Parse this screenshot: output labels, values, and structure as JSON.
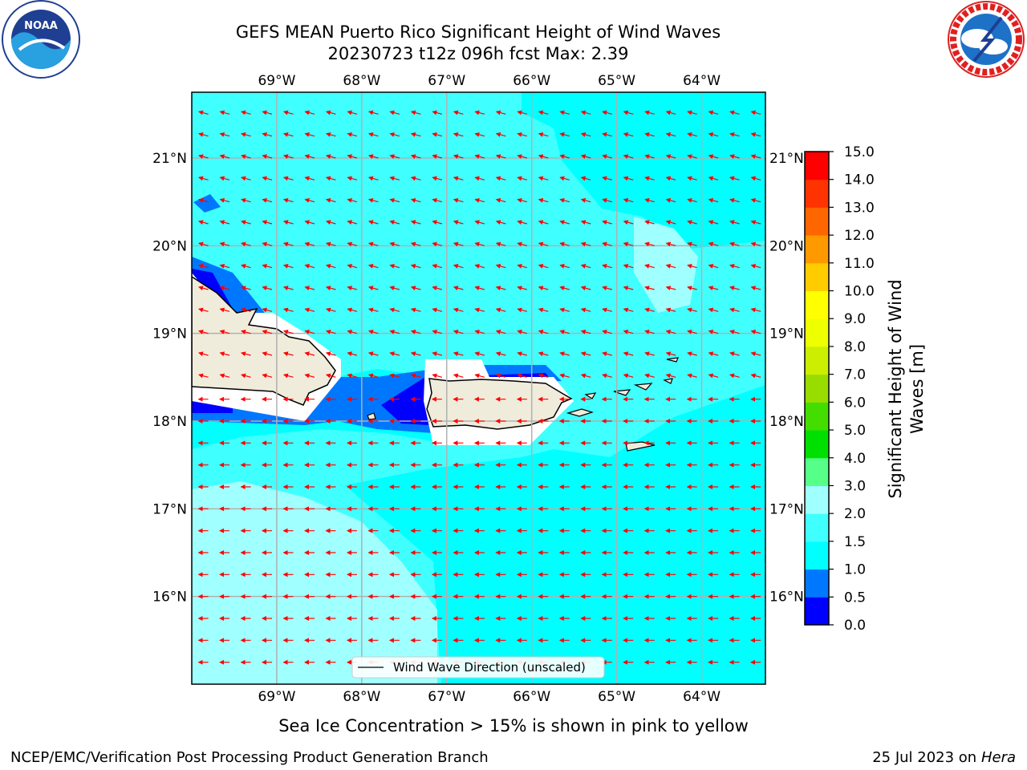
{
  "title": {
    "line1": "GEFS MEAN Puerto Rico Significant Height of Wind Waves",
    "line2": "20230723 t12z 096h fcst   Max: 2.39"
  },
  "map": {
    "lon_range": [
      -70.0,
      -63.25
    ],
    "lat_range": [
      15.0,
      21.75
    ],
    "lon_ticks": [
      {
        "value": -69,
        "label": "69°W"
      },
      {
        "value": -68,
        "label": "68°W"
      },
      {
        "value": -67,
        "label": "67°W"
      },
      {
        "value": -66,
        "label": "66°W"
      },
      {
        "value": -65,
        "label": "65°W"
      },
      {
        "value": -64,
        "label": "64°W"
      }
    ],
    "lat_ticks": [
      {
        "value": 21,
        "label": "21°N"
      },
      {
        "value": 20,
        "label": "20°N"
      },
      {
        "value": 19,
        "label": "19°N"
      },
      {
        "value": 18,
        "label": "18°N"
      },
      {
        "value": 17,
        "label": "17°N"
      },
      {
        "value": 16,
        "label": "16°N"
      }
    ],
    "grid": true,
    "arrow_color": "#ff0000",
    "land_color": "#efecdc",
    "legend_label": "Wind Wave Direction (unscaled)",
    "legend_placement": "bottom-center"
  },
  "colorbar": {
    "label": "Significant Height of Wind Waves [m]",
    "label_line1": "Significant Height of Wind",
    "label_line2": "Waves [m]",
    "levels": [
      0.0,
      0.5,
      1.0,
      1.5,
      2.0,
      3.0,
      4.0,
      5.0,
      6.0,
      7.0,
      8.0,
      9.0,
      10.0,
      11.0,
      12.0,
      13.0,
      14.0,
      15.0
    ],
    "tick_labels": [
      "0.0",
      "0.5",
      "1.0",
      "1.5",
      "2.0",
      "3.0",
      "4.0",
      "5.0",
      "6.0",
      "7.0",
      "8.0",
      "9.0",
      "10.0",
      "11.0",
      "12.0",
      "13.0",
      "14.0",
      "15.0"
    ],
    "colors": [
      "#0000ff",
      "#0077ff",
      "#00ffff",
      "#40ffff",
      "#a0ffff",
      "#55ff88",
      "#00e000",
      "#44dd00",
      "#99dd00",
      "#ccee00",
      "#eeff00",
      "#ffff00",
      "#ffcc00",
      "#ff9900",
      "#ff6600",
      "#ff3300",
      "#ff0000"
    ]
  },
  "sea_ice_note": "Sea Ice Concentration > 15% is shown in pink to yellow",
  "footer": {
    "left": "NCEP/EMC/Verification Post Processing Product Generation Branch",
    "right_date": "25 Jul 2023 on ",
    "right_host": "Hera"
  },
  "logos": {
    "noaa_text": "NOAA",
    "noaa_ring": "NATIONAL OCEANIC AND ATMOSPHERIC ADMINISTRATION · U.S. DEPARTMENT OF COMMERCE",
    "nws_ring": "NATIONAL WEATHER SERVICE"
  }
}
